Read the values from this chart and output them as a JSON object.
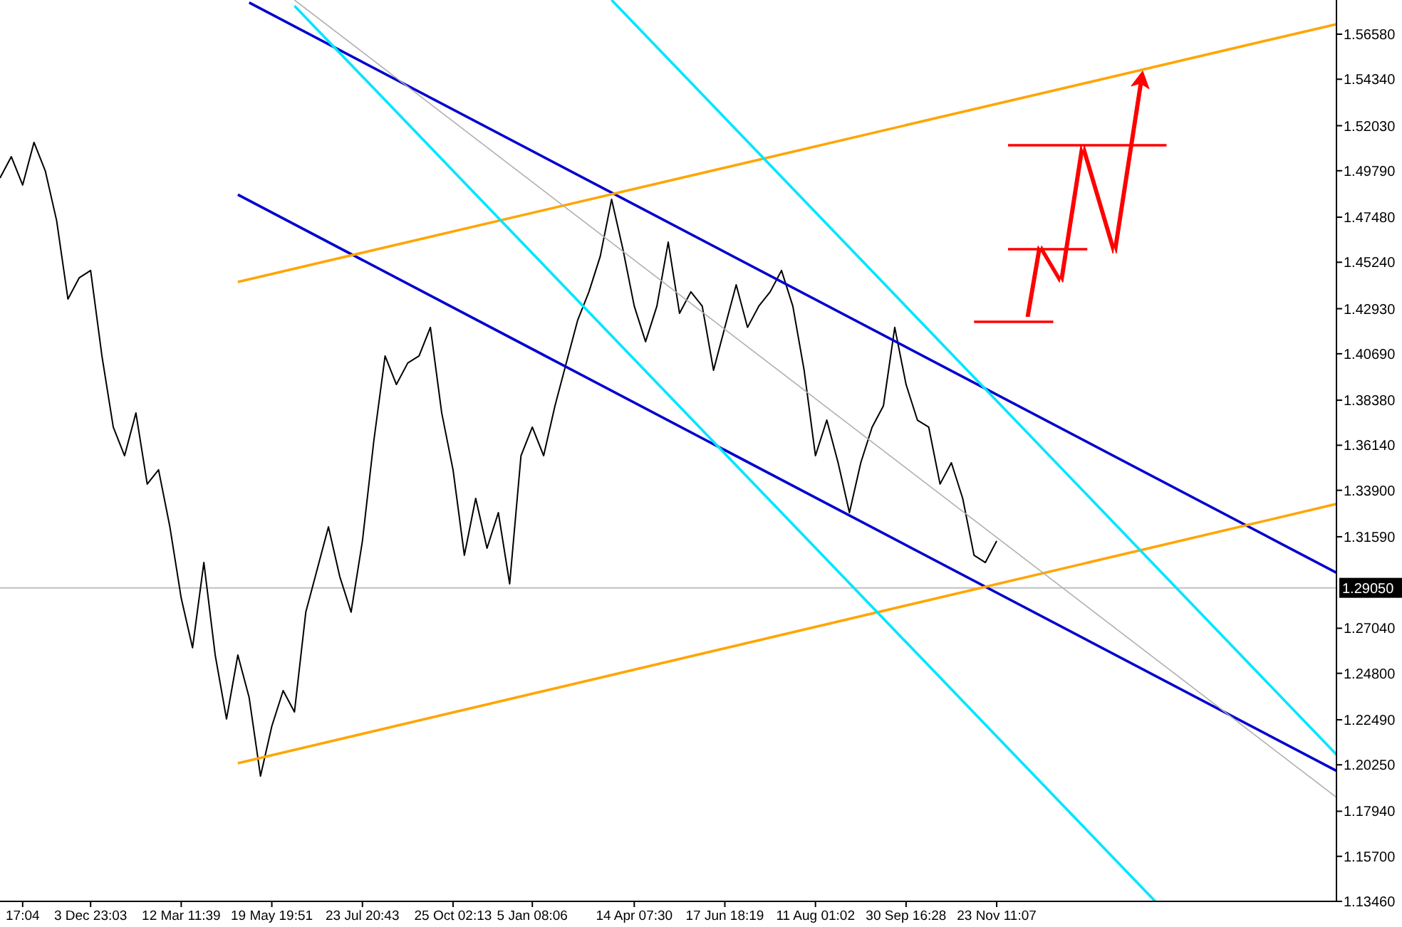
{
  "chart_data": {
    "type": "line",
    "ylim": [
      1.1346,
      1.5828
    ],
    "categories": [
      null,
      null,
      "17:04",
      null,
      null,
      null,
      null,
      null,
      "3 Dec 23:03",
      null,
      null,
      null,
      null,
      null,
      null,
      null,
      "12 Mar 11:39",
      null,
      null,
      null,
      null,
      null,
      null,
      null,
      "19 May 19:51",
      null,
      null,
      null,
      null,
      null,
      null,
      null,
      "23 Jul 20:43",
      null,
      null,
      null,
      null,
      null,
      null,
      null,
      "25 Oct 02:13",
      null,
      null,
      null,
      null,
      null,
      null,
      "5 Jan 08:06",
      null,
      null,
      null,
      null,
      null,
      null,
      null,
      null,
      "14 Apr 07:30",
      null,
      null,
      null,
      null,
      null,
      null,
      null,
      "17 Jun 18:19",
      null,
      null,
      null,
      null,
      null,
      null,
      null,
      "11 Aug 01:02",
      null,
      null,
      null,
      null,
      null,
      null,
      null,
      "30 Sep 16:28",
      null,
      null,
      null,
      null,
      null,
      null,
      null,
      "23 Nov 11:07",
      null,
      null,
      null,
      null,
      null,
      null,
      null,
      null,
      null,
      null,
      null,
      null,
      null,
      null,
      null,
      null,
      null,
      null,
      null,
      null,
      null,
      null,
      null,
      null,
      null,
      null,
      null,
      null,
      null,
      null
    ],
    "yticks": [
      {
        "value": 1.5658,
        "label": "1.56580"
      },
      {
        "value": 1.5434,
        "label": "1.54340"
      },
      {
        "value": 1.5203,
        "label": "1.52030"
      },
      {
        "value": 1.4979,
        "label": "1.49790"
      },
      {
        "value": 1.4748,
        "label": "1.47480"
      },
      {
        "value": 1.4524,
        "label": "1.45240"
      },
      {
        "value": 1.4293,
        "label": "1.42930"
      },
      {
        "value": 1.4069,
        "label": "1.40690"
      },
      {
        "value": 1.3838,
        "label": "1.38380"
      },
      {
        "value": 1.3614,
        "label": "1.36140"
      },
      {
        "value": 1.339,
        "label": "1.33900"
      },
      {
        "value": 1.3159,
        "label": "1.31590"
      },
      {
        "value": 1.2704,
        "label": "1.27040"
      },
      {
        "value": 1.248,
        "label": "1.24800"
      },
      {
        "value": 1.2249,
        "label": "1.22490"
      },
      {
        "value": 1.2025,
        "label": "1.20250"
      },
      {
        "value": 1.1794,
        "label": "1.17940"
      },
      {
        "value": 1.157,
        "label": "1.15700"
      },
      {
        "value": 1.1346,
        "label": "1.13460"
      }
    ],
    "grid": false,
    "marker": "none",
    "ref_lines": [
      {
        "axis": "y",
        "value": 1.2905,
        "label": "1.29050",
        "color": "#c0c0c0"
      }
    ],
    "series": [
      {
        "color": "#000000",
        "values": [
          1.4943,
          1.5049,
          1.4908,
          1.512,
          1.4978,
          1.4731,
          1.4341,
          1.4447,
          1.4483,
          1.4058,
          1.3704,
          1.3562,
          1.3775,
          1.3421,
          1.3492,
          1.3208,
          1.2854,
          1.2607,
          1.3031,
          1.2571,
          1.2253,
          1.2571,
          1.2359,
          1.1969,
          1.2217,
          1.2394,
          1.2288,
          1.2784,
          1.2996,
          1.3208,
          1.2961,
          1.2784,
          1.3138,
          1.3633,
          1.4058,
          1.3916,
          1.4023,
          1.4058,
          1.42,
          1.3775,
          1.3492,
          1.3067,
          1.335,
          1.3102,
          1.3279,
          1.2925,
          1.3562,
          1.3704,
          1.3562,
          1.381,
          1.4023,
          1.4235,
          1.4377,
          1.4554,
          1.4837,
          1.4589,
          1.4306,
          1.4129,
          1.4306,
          1.4624,
          1.427,
          1.4377,
          1.4306,
          1.3987,
          1.42,
          1.4412,
          1.42,
          1.4306,
          1.4377,
          1.4483,
          1.4306,
          1.3987,
          1.3562,
          1.3739,
          1.3527,
          1.3279,
          1.3527,
          1.3704,
          1.381,
          1.42,
          1.3916,
          1.3739,
          1.3704,
          1.3421,
          1.3527,
          1.335,
          1.3067,
          1.3031,
          1.3138,
          null,
          null,
          null,
          null,
          null,
          null,
          null,
          null,
          null,
          null,
          null,
          null,
          null,
          null,
          null,
          null,
          null,
          null,
          null,
          null,
          null,
          null,
          null,
          null,
          null,
          null,
          null,
          null,
          null,
          null
        ]
      },
      {
        "color": "#0000cd",
        "values": [
          null,
          null,
          null,
          null,
          null,
          null,
          null,
          null,
          null,
          null,
          null,
          null,
          null,
          null,
          null,
          null,
          null,
          null,
          null,
          null,
          null,
          null,
          1.5815,
          null,
          null,
          null,
          null,
          null,
          null,
          null,
          null,
          null,
          null,
          null,
          null,
          null,
          null,
          null,
          null,
          null,
          null,
          null,
          null,
          null,
          null,
          null,
          null,
          null,
          null,
          null,
          null,
          null,
          null,
          null,
          null,
          null,
          null,
          null,
          null,
          null,
          null,
          null,
          null,
          null,
          null,
          null,
          null,
          null,
          null,
          null,
          null,
          null,
          null,
          null,
          null,
          null,
          null,
          null,
          null,
          null,
          null,
          null,
          null,
          null,
          null,
          null,
          null,
          null,
          null,
          null,
          null,
          null,
          null,
          null,
          null,
          null,
          null,
          null,
          null,
          null,
          null,
          null,
          null,
          null,
          null,
          null,
          null,
          null,
          null,
          null,
          null,
          null,
          null,
          null,
          null,
          null,
          null,
          null,
          1.298
        ]
      },
      {
        "color": "#0000cd",
        "values": [
          null,
          null,
          null,
          null,
          null,
          null,
          null,
          null,
          null,
          null,
          null,
          null,
          null,
          null,
          null,
          null,
          null,
          null,
          null,
          null,
          null,
          1.486,
          null,
          null,
          null,
          null,
          null,
          null,
          null,
          null,
          null,
          null,
          null,
          null,
          null,
          null,
          null,
          null,
          null,
          null,
          null,
          null,
          null,
          null,
          null,
          null,
          null,
          null,
          null,
          null,
          null,
          null,
          null,
          null,
          null,
          null,
          null,
          null,
          null,
          null,
          null,
          null,
          null,
          null,
          null,
          null,
          null,
          null,
          null,
          null,
          null,
          null,
          null,
          null,
          null,
          null,
          null,
          null,
          null,
          null,
          null,
          null,
          null,
          null,
          null,
          null,
          null,
          null,
          null,
          null,
          null,
          null,
          null,
          null,
          null,
          null,
          null,
          null,
          null,
          null,
          null,
          null,
          null,
          null,
          null,
          null,
          null,
          null,
          null,
          null,
          null,
          null,
          null,
          null,
          null,
          null,
          null,
          null,
          1.1995
        ]
      },
      {
        "color": "#ffa500",
        "values": [
          null,
          null,
          null,
          null,
          null,
          null,
          null,
          null,
          null,
          null,
          null,
          null,
          null,
          null,
          null,
          null,
          null,
          null,
          null,
          null,
          null,
          1.4426,
          null,
          null,
          null,
          null,
          null,
          null,
          null,
          null,
          null,
          null,
          null,
          null,
          null,
          null,
          null,
          null,
          null,
          null,
          null,
          null,
          null,
          null,
          null,
          null,
          null,
          null,
          null,
          null,
          null,
          null,
          null,
          null,
          null,
          null,
          null,
          null,
          null,
          null,
          null,
          null,
          null,
          null,
          null,
          null,
          null,
          null,
          null,
          null,
          null,
          null,
          null,
          null,
          null,
          null,
          null,
          null,
          null,
          null,
          null,
          null,
          null,
          null,
          null,
          null,
          null,
          null,
          null,
          null,
          null,
          null,
          null,
          null,
          null,
          null,
          null,
          null,
          null,
          null,
          null,
          null,
          null,
          null,
          null,
          null,
          null,
          null,
          null,
          null,
          null,
          null,
          null,
          null,
          null,
          null,
          null,
          null,
          1.5708
        ]
      },
      {
        "color": "#ffa500",
        "values": [
          null,
          null,
          null,
          null,
          null,
          null,
          null,
          null,
          null,
          null,
          null,
          null,
          null,
          null,
          null,
          null,
          null,
          null,
          null,
          null,
          null,
          1.2033,
          null,
          null,
          null,
          null,
          null,
          null,
          null,
          null,
          null,
          null,
          null,
          null,
          null,
          null,
          null,
          null,
          null,
          null,
          null,
          null,
          null,
          null,
          null,
          null,
          null,
          null,
          null,
          null,
          null,
          null,
          null,
          null,
          null,
          null,
          null,
          null,
          null,
          null,
          null,
          null,
          null,
          null,
          null,
          null,
          null,
          null,
          null,
          null,
          null,
          null,
          null,
          null,
          null,
          null,
          null,
          null,
          null,
          null,
          null,
          null,
          null,
          null,
          null,
          null,
          null,
          null,
          null,
          null,
          null,
          null,
          null,
          null,
          null,
          null,
          null,
          null,
          null,
          null,
          null,
          null,
          null,
          null,
          null,
          null,
          null,
          null,
          null,
          null,
          null,
          null,
          null,
          null,
          null,
          null,
          null,
          null,
          1.3322
        ]
      },
      {
        "color": "#00e5ff",
        "values": [
          null,
          null,
          null,
          null,
          null,
          null,
          null,
          null,
          null,
          null,
          null,
          null,
          null,
          null,
          null,
          null,
          null,
          null,
          null,
          null,
          null,
          null,
          null,
          null,
          null,
          null,
          1.5799,
          null,
          null,
          null,
          null,
          null,
          null,
          null,
          null,
          null,
          null,
          null,
          null,
          null,
          null,
          null,
          null,
          null,
          null,
          null,
          null,
          null,
          null,
          null,
          null,
          null,
          null,
          null,
          null,
          null,
          null,
          null,
          null,
          null,
          null,
          null,
          null,
          null,
          null,
          null,
          null,
          null,
          null,
          null,
          null,
          null,
          null,
          null,
          null,
          null,
          null,
          null,
          null,
          null,
          null,
          null,
          null,
          null,
          null,
          null,
          null,
          null,
          null,
          null,
          null,
          null,
          null,
          null,
          null,
          null,
          null,
          null,
          null,
          null,
          null,
          null,
          1.1346,
          null,
          null,
          null,
          null,
          null,
          null,
          null,
          null,
          null,
          null,
          null,
          null,
          null,
          null,
          null,
          null
        ]
      },
      {
        "color": "#00e5ff",
        "values": [
          null,
          null,
          null,
          null,
          null,
          null,
          null,
          null,
          null,
          null,
          null,
          null,
          null,
          null,
          null,
          null,
          null,
          null,
          null,
          null,
          null,
          null,
          null,
          null,
          null,
          null,
          null,
          null,
          null,
          null,
          null,
          null,
          null,
          null,
          null,
          null,
          null,
          null,
          null,
          null,
          null,
          null,
          null,
          null,
          null,
          null,
          null,
          null,
          null,
          null,
          null,
          null,
          null,
          null,
          1.5828,
          null,
          null,
          null,
          null,
          null,
          null,
          null,
          null,
          null,
          null,
          null,
          null,
          null,
          null,
          null,
          null,
          null,
          null,
          null,
          null,
          null,
          null,
          null,
          null,
          null,
          null,
          null,
          null,
          null,
          null,
          null,
          null,
          null,
          null,
          null,
          null,
          null,
          null,
          null,
          null,
          null,
          null,
          null,
          null,
          null,
          null,
          null,
          null,
          null,
          null,
          null,
          null,
          null,
          null,
          null,
          null,
          null,
          null,
          null,
          null,
          null,
          null,
          null,
          1.2076
        ]
      },
      {
        "color": "#b0b0b0",
        "values": [
          null,
          null,
          null,
          null,
          null,
          null,
          null,
          null,
          null,
          null,
          null,
          null,
          null,
          null,
          null,
          null,
          null,
          null,
          null,
          null,
          null,
          null,
          null,
          null,
          null,
          null,
          1.5828,
          null,
          null,
          null,
          null,
          null,
          null,
          null,
          null,
          null,
          null,
          null,
          null,
          null,
          null,
          null,
          null,
          null,
          null,
          null,
          null,
          null,
          null,
          null,
          null,
          null,
          null,
          null,
          null,
          null,
          null,
          null,
          null,
          null,
          null,
          null,
          null,
          null,
          null,
          null,
          null,
          null,
          null,
          null,
          null,
          null,
          null,
          null,
          null,
          null,
          null,
          null,
          null,
          null,
          null,
          null,
          null,
          null,
          null,
          null,
          null,
          null,
          null,
          null,
          null,
          null,
          null,
          null,
          null,
          null,
          null,
          null,
          null,
          null,
          null,
          null,
          null,
          null,
          null,
          null,
          null,
          null,
          null,
          null,
          null,
          null,
          null,
          null,
          null,
          null,
          null,
          null,
          1.1863
        ]
      },
      {
        "color": "#ff0000",
        "values": [
          null,
          null,
          null,
          null,
          null,
          null,
          null,
          null,
          null,
          null,
          null,
          null,
          null,
          null,
          null,
          null,
          null,
          null,
          null,
          null,
          null,
          null,
          null,
          null,
          null,
          null,
          null,
          null,
          null,
          null,
          null,
          null,
          null,
          null,
          null,
          null,
          null,
          null,
          null,
          null,
          null,
          null,
          null,
          null,
          null,
          null,
          null,
          null,
          null,
          null,
          null,
          null,
          null,
          null,
          null,
          null,
          null,
          null,
          null,
          null,
          null,
          null,
          null,
          null,
          null,
          null,
          null,
          null,
          null,
          null,
          null,
          null,
          null,
          null,
          null,
          null,
          null,
          null,
          null,
          null,
          null,
          null,
          null,
          null,
          null,
          null,
          1.4228,
          null,
          null,
          null,
          null,
          null,
          null,
          1.4228,
          null,
          null,
          null,
          null,
          null,
          null,
          null,
          null,
          null,
          null,
          null,
          null,
          null,
          null,
          null,
          null,
          null,
          null,
          null,
          null,
          null,
          null,
          null,
          null,
          null
        ]
      },
      {
        "color": "#ff0000",
        "values": [
          null,
          null,
          null,
          null,
          null,
          null,
          null,
          null,
          null,
          null,
          null,
          null,
          null,
          null,
          null,
          null,
          null,
          null,
          null,
          null,
          null,
          null,
          null,
          null,
          null,
          null,
          null,
          null,
          null,
          null,
          null,
          null,
          null,
          null,
          null,
          null,
          null,
          null,
          null,
          null,
          null,
          null,
          null,
          null,
          null,
          null,
          null,
          null,
          null,
          null,
          null,
          null,
          null,
          null,
          null,
          null,
          null,
          null,
          null,
          null,
          null,
          null,
          null,
          null,
          null,
          null,
          null,
          null,
          null,
          null,
          null,
          null,
          null,
          null,
          null,
          null,
          null,
          null,
          null,
          null,
          null,
          null,
          null,
          null,
          null,
          null,
          null,
          null,
          null,
          1.4589,
          null,
          null,
          null,
          null,
          null,
          null,
          1.4589,
          null,
          null,
          null,
          null,
          null,
          null,
          null,
          null,
          null,
          null,
          null,
          null,
          null,
          null,
          null,
          null,
          null,
          null,
          null,
          null,
          null,
          null
        ]
      },
      {
        "color": "#ff0000",
        "values": [
          null,
          null,
          null,
          null,
          null,
          null,
          null,
          null,
          null,
          null,
          null,
          null,
          null,
          null,
          null,
          null,
          null,
          null,
          null,
          null,
          null,
          null,
          null,
          null,
          null,
          null,
          null,
          null,
          null,
          null,
          null,
          null,
          null,
          null,
          null,
          null,
          null,
          null,
          null,
          null,
          null,
          null,
          null,
          null,
          null,
          null,
          null,
          null,
          null,
          null,
          null,
          null,
          null,
          null,
          null,
          null,
          null,
          null,
          null,
          null,
          null,
          null,
          null,
          null,
          null,
          null,
          null,
          null,
          null,
          null,
          null,
          null,
          null,
          null,
          null,
          null,
          null,
          null,
          null,
          null,
          null,
          null,
          null,
          null,
          null,
          null,
          null,
          null,
          null,
          1.5106,
          null,
          null,
          null,
          null,
          null,
          null,
          null,
          null,
          null,
          null,
          null,
          null,
          null,
          1.5106,
          null,
          null,
          null,
          null,
          null,
          null,
          null,
          null,
          null,
          null,
          null,
          null,
          null,
          null,
          null
        ]
      }
    ]
  }
}
